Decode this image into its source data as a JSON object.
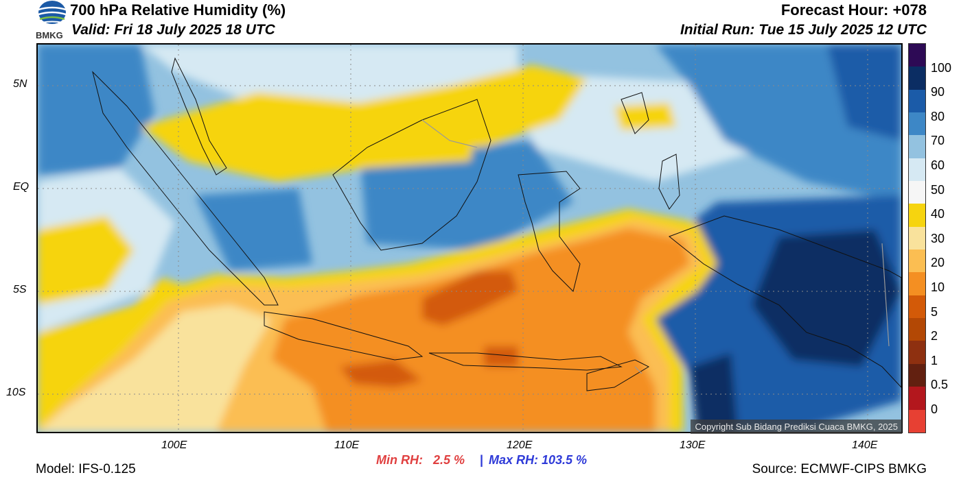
{
  "header": {
    "title": "700 hPa Relative Humidity (%)",
    "valid": "Valid: Fri 18 July 2025 18 UTC",
    "forecast_hour": "Forecast Hour: +078",
    "initial_run": "Initial Run: Tue 15 July 2025 12 UTC",
    "logo_text": "BMKG"
  },
  "map": {
    "lat_labels": [
      "5N",
      "EQ",
      "5S",
      "10S"
    ],
    "lon_labels": [
      "100E",
      "110E",
      "120E",
      "130E",
      "140E"
    ],
    "copyright": "Copyright Sub Bidang Prediksi Cuaca BMKG, 2025"
  },
  "colorbar": {
    "levels": [
      "100",
      "90",
      "80",
      "70",
      "60",
      "50",
      "40",
      "30",
      "20",
      "10",
      "5",
      "2",
      "1",
      "0.5",
      "0"
    ],
    "colors": [
      "#2d0a55",
      "#0b2d63",
      "#1b5ba8",
      "#3d87c6",
      "#93c2e0",
      "#d6e9f3",
      "#f6f6f6",
      "#f6d40f",
      "#f9e29c",
      "#fbbe52",
      "#f48f22",
      "#d35a08",
      "#b34805",
      "#8e3010",
      "#622010",
      "#b3171d",
      "#e74033"
    ]
  },
  "footer": {
    "min_rh": "Min RH:   2.5 %",
    "separator": "|",
    "max_rh": "Max RH: 103.5 %",
    "model": "Model: IFS-0.125",
    "source": "Source: ECMWF-CIPS BMKG"
  }
}
